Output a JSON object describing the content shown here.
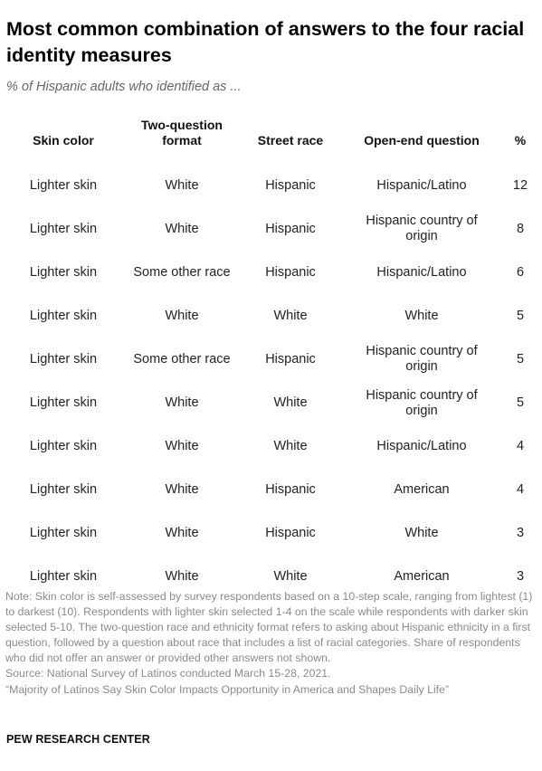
{
  "title": "Most common combination of answers to the four racial identity measures",
  "subtitle": "% of Hispanic adults who identified as ...",
  "chart_data": {
    "type": "table",
    "columns": [
      "Skin color",
      "Two-question format",
      "Street race",
      "Open-end question",
      "%"
    ],
    "rows": [
      [
        "Lighter skin",
        "White",
        "Hispanic",
        "Hispanic/Latino",
        "12"
      ],
      [
        "Lighter skin",
        "White",
        "Hispanic",
        "Hispanic country of origin",
        "8"
      ],
      [
        "Lighter skin",
        "Some other race",
        "Hispanic",
        "Hispanic/Latino",
        "6"
      ],
      [
        "Lighter skin",
        "White",
        "White",
        "White",
        "5"
      ],
      [
        "Lighter skin",
        "Some other race",
        "Hispanic",
        "Hispanic country of origin",
        "5"
      ],
      [
        "Lighter skin",
        "White",
        "White",
        "Hispanic country of origin",
        "5"
      ],
      [
        "Lighter skin",
        "White",
        "White",
        "Hispanic/Latino",
        "4"
      ],
      [
        "Lighter skin",
        "White",
        "Hispanic",
        "American",
        "4"
      ],
      [
        "Lighter skin",
        "White",
        "Hispanic",
        "White",
        "3"
      ],
      [
        "Lighter skin",
        "White",
        "White",
        "American",
        "3"
      ]
    ]
  },
  "footer": {
    "note": "Note: Skin color is self-assessed by survey respondents based on a 10-step scale, ranging from lightest (1) to darkest (10). Respondents with lighter skin selected 1-4 on the scale while respondents with darker skin selected 5-10. The two-question race and ethnicity format refers to asking about Hispanic ethnicity in a first question, followed by a question about race that includes a list of racial categories. Share of respondents who did not offer an answer or provided other answers not shown.",
    "source": "Source: National Survey of Latinos conducted March 15-28, 2021.",
    "report": "“Majority of Latinos Say Skin Color Impacts Opportunity in America and Shapes Daily Life”",
    "brand": "PEW RESEARCH CENTER"
  }
}
